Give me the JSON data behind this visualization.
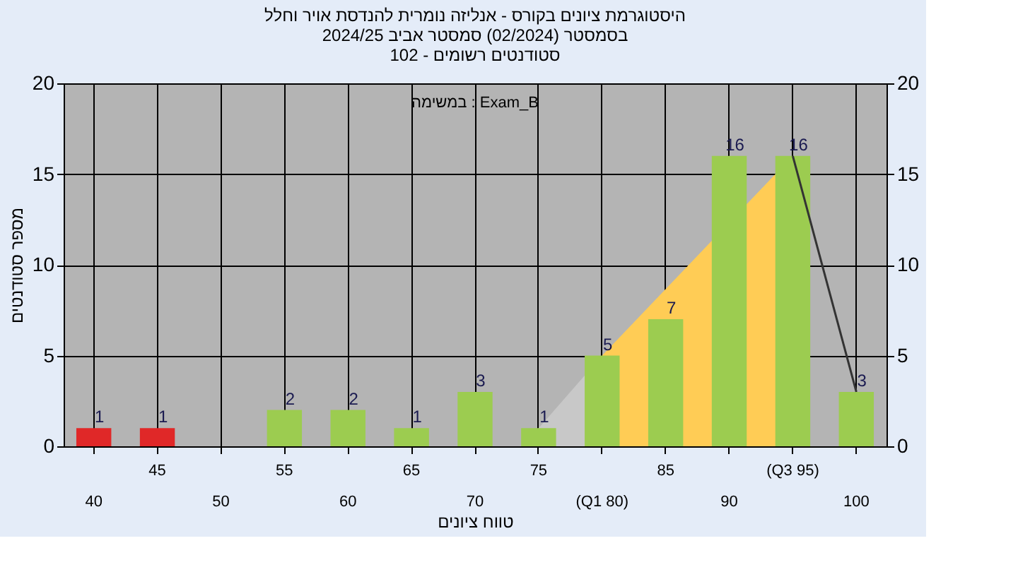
{
  "chart_data": {
    "type": "bar",
    "title": [
      "היסטוגרמת ציונים בקורס - אנליזה נומרית להנדסת אויר וחלל",
      "בסמסטר  (02/2024)  סמסטר אביב 2024/25",
      "סטודנטים רשומים - 102"
    ],
    "xlabel": "טווח ציונים",
    "ylabel": "מספר סטודנטים",
    "categories": [
      "40",
      "45",
      "50",
      "55",
      "60",
      "65",
      "70",
      "75",
      "(Q1 80)",
      "85",
      "90",
      "(Q3 95)",
      "100"
    ],
    "series": [
      {
        "type": "area",
        "color": "#c8c8c8",
        "x": [
          "75",
          "(Q1 80)"
        ],
        "values": [
          1,
          5
        ]
      },
      {
        "type": "area",
        "color": "#ffcc55",
        "x": [
          "(Q1 80)",
          "(Q3 95)"
        ],
        "values": [
          5,
          16
        ]
      },
      {
        "type": "line",
        "color": "#333333",
        "x": [
          "(Q3 95)",
          "100"
        ],
        "values": [
          16,
          3
        ]
      },
      {
        "type": "bar",
        "values": [
          1,
          1,
          0,
          2,
          2,
          1,
          3,
          1,
          5,
          7,
          16,
          16,
          3
        ],
        "colors": [
          "#e02828",
          "#e02828",
          "#9ccc50",
          "#9ccc50",
          "#9ccc50",
          "#9ccc50",
          "#9ccc50",
          "#9ccc50",
          "#9ccc50",
          "#9ccc50",
          "#9ccc50",
          "#9ccc50",
          "#9ccc50"
        ],
        "value_labels": [
          "1",
          "1",
          null,
          "2",
          "2",
          "1",
          "3",
          "1",
          "5",
          "7",
          "16",
          "16",
          "3"
        ]
      }
    ],
    "ylim": [
      0,
      20
    ],
    "yticks": [
      0,
      5,
      10,
      15,
      20
    ],
    "y2lim": [
      0,
      20
    ],
    "y2ticks": [
      0,
      5,
      10,
      15,
      20
    ],
    "grid": true,
    "annotations": [
      "במשימה : Exam_B"
    ]
  }
}
